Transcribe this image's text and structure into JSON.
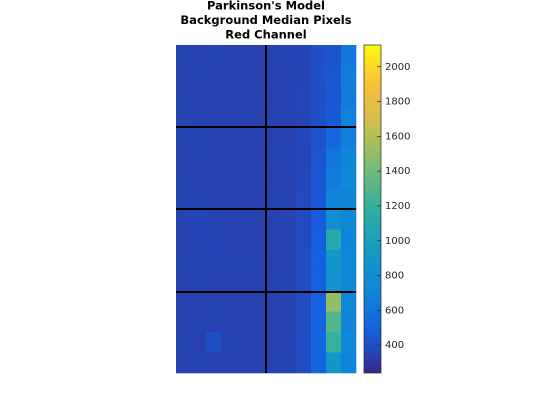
{
  "chart_data": {
    "type": "heatmap",
    "title": [
      "Parkinson's Model",
      "Background Median Pixels",
      "Red Channel"
    ],
    "colormap": "parula",
    "values": [
      [
        350,
        345,
        355,
        350,
        340,
        345,
        350,
        355,
        360,
        400,
        420,
        620
      ],
      [
        345,
        350,
        350,
        345,
        350,
        340,
        345,
        350,
        360,
        410,
        430,
        650
      ],
      [
        350,
        345,
        340,
        350,
        345,
        350,
        345,
        350,
        365,
        400,
        440,
        640
      ],
      [
        355,
        350,
        345,
        340,
        350,
        345,
        350,
        345,
        360,
        410,
        450,
        680
      ],
      [
        350,
        355,
        350,
        345,
        345,
        350,
        345,
        350,
        370,
        420,
        520,
        660
      ],
      [
        345,
        350,
        345,
        350,
        340,
        345,
        350,
        355,
        365,
        430,
        600,
        700
      ],
      [
        350,
        345,
        350,
        345,
        350,
        350,
        345,
        350,
        370,
        440,
        650,
        720
      ],
      [
        355,
        350,
        345,
        350,
        345,
        345,
        350,
        350,
        375,
        450,
        700,
        700
      ],
      [
        350,
        360,
        350,
        345,
        350,
        350,
        345,
        355,
        380,
        460,
        800,
        720
      ],
      [
        345,
        355,
        360,
        350,
        345,
        345,
        350,
        350,
        380,
        470,
        1100,
        700
      ],
      [
        350,
        350,
        355,
        350,
        350,
        350,
        345,
        355,
        385,
        480,
        900,
        720
      ],
      [
        345,
        350,
        350,
        345,
        345,
        350,
        350,
        350,
        385,
        490,
        850,
        730
      ],
      [
        350,
        345,
        350,
        350,
        350,
        345,
        345,
        355,
        390,
        500,
        1500,
        720
      ],
      [
        345,
        350,
        350,
        345,
        345,
        350,
        350,
        350,
        390,
        500,
        1300,
        700
      ],
      [
        350,
        345,
        400,
        350,
        350,
        345,
        345,
        355,
        395,
        510,
        1200,
        720
      ],
      [
        345,
        350,
        345,
        350,
        345,
        350,
        350,
        350,
        395,
        510,
        900,
        700
      ]
    ],
    "clim": [
      240,
      2125
    ],
    "cticks": [
      400,
      600,
      800,
      1000,
      1200,
      1400,
      1600,
      1800,
      2000
    ]
  }
}
